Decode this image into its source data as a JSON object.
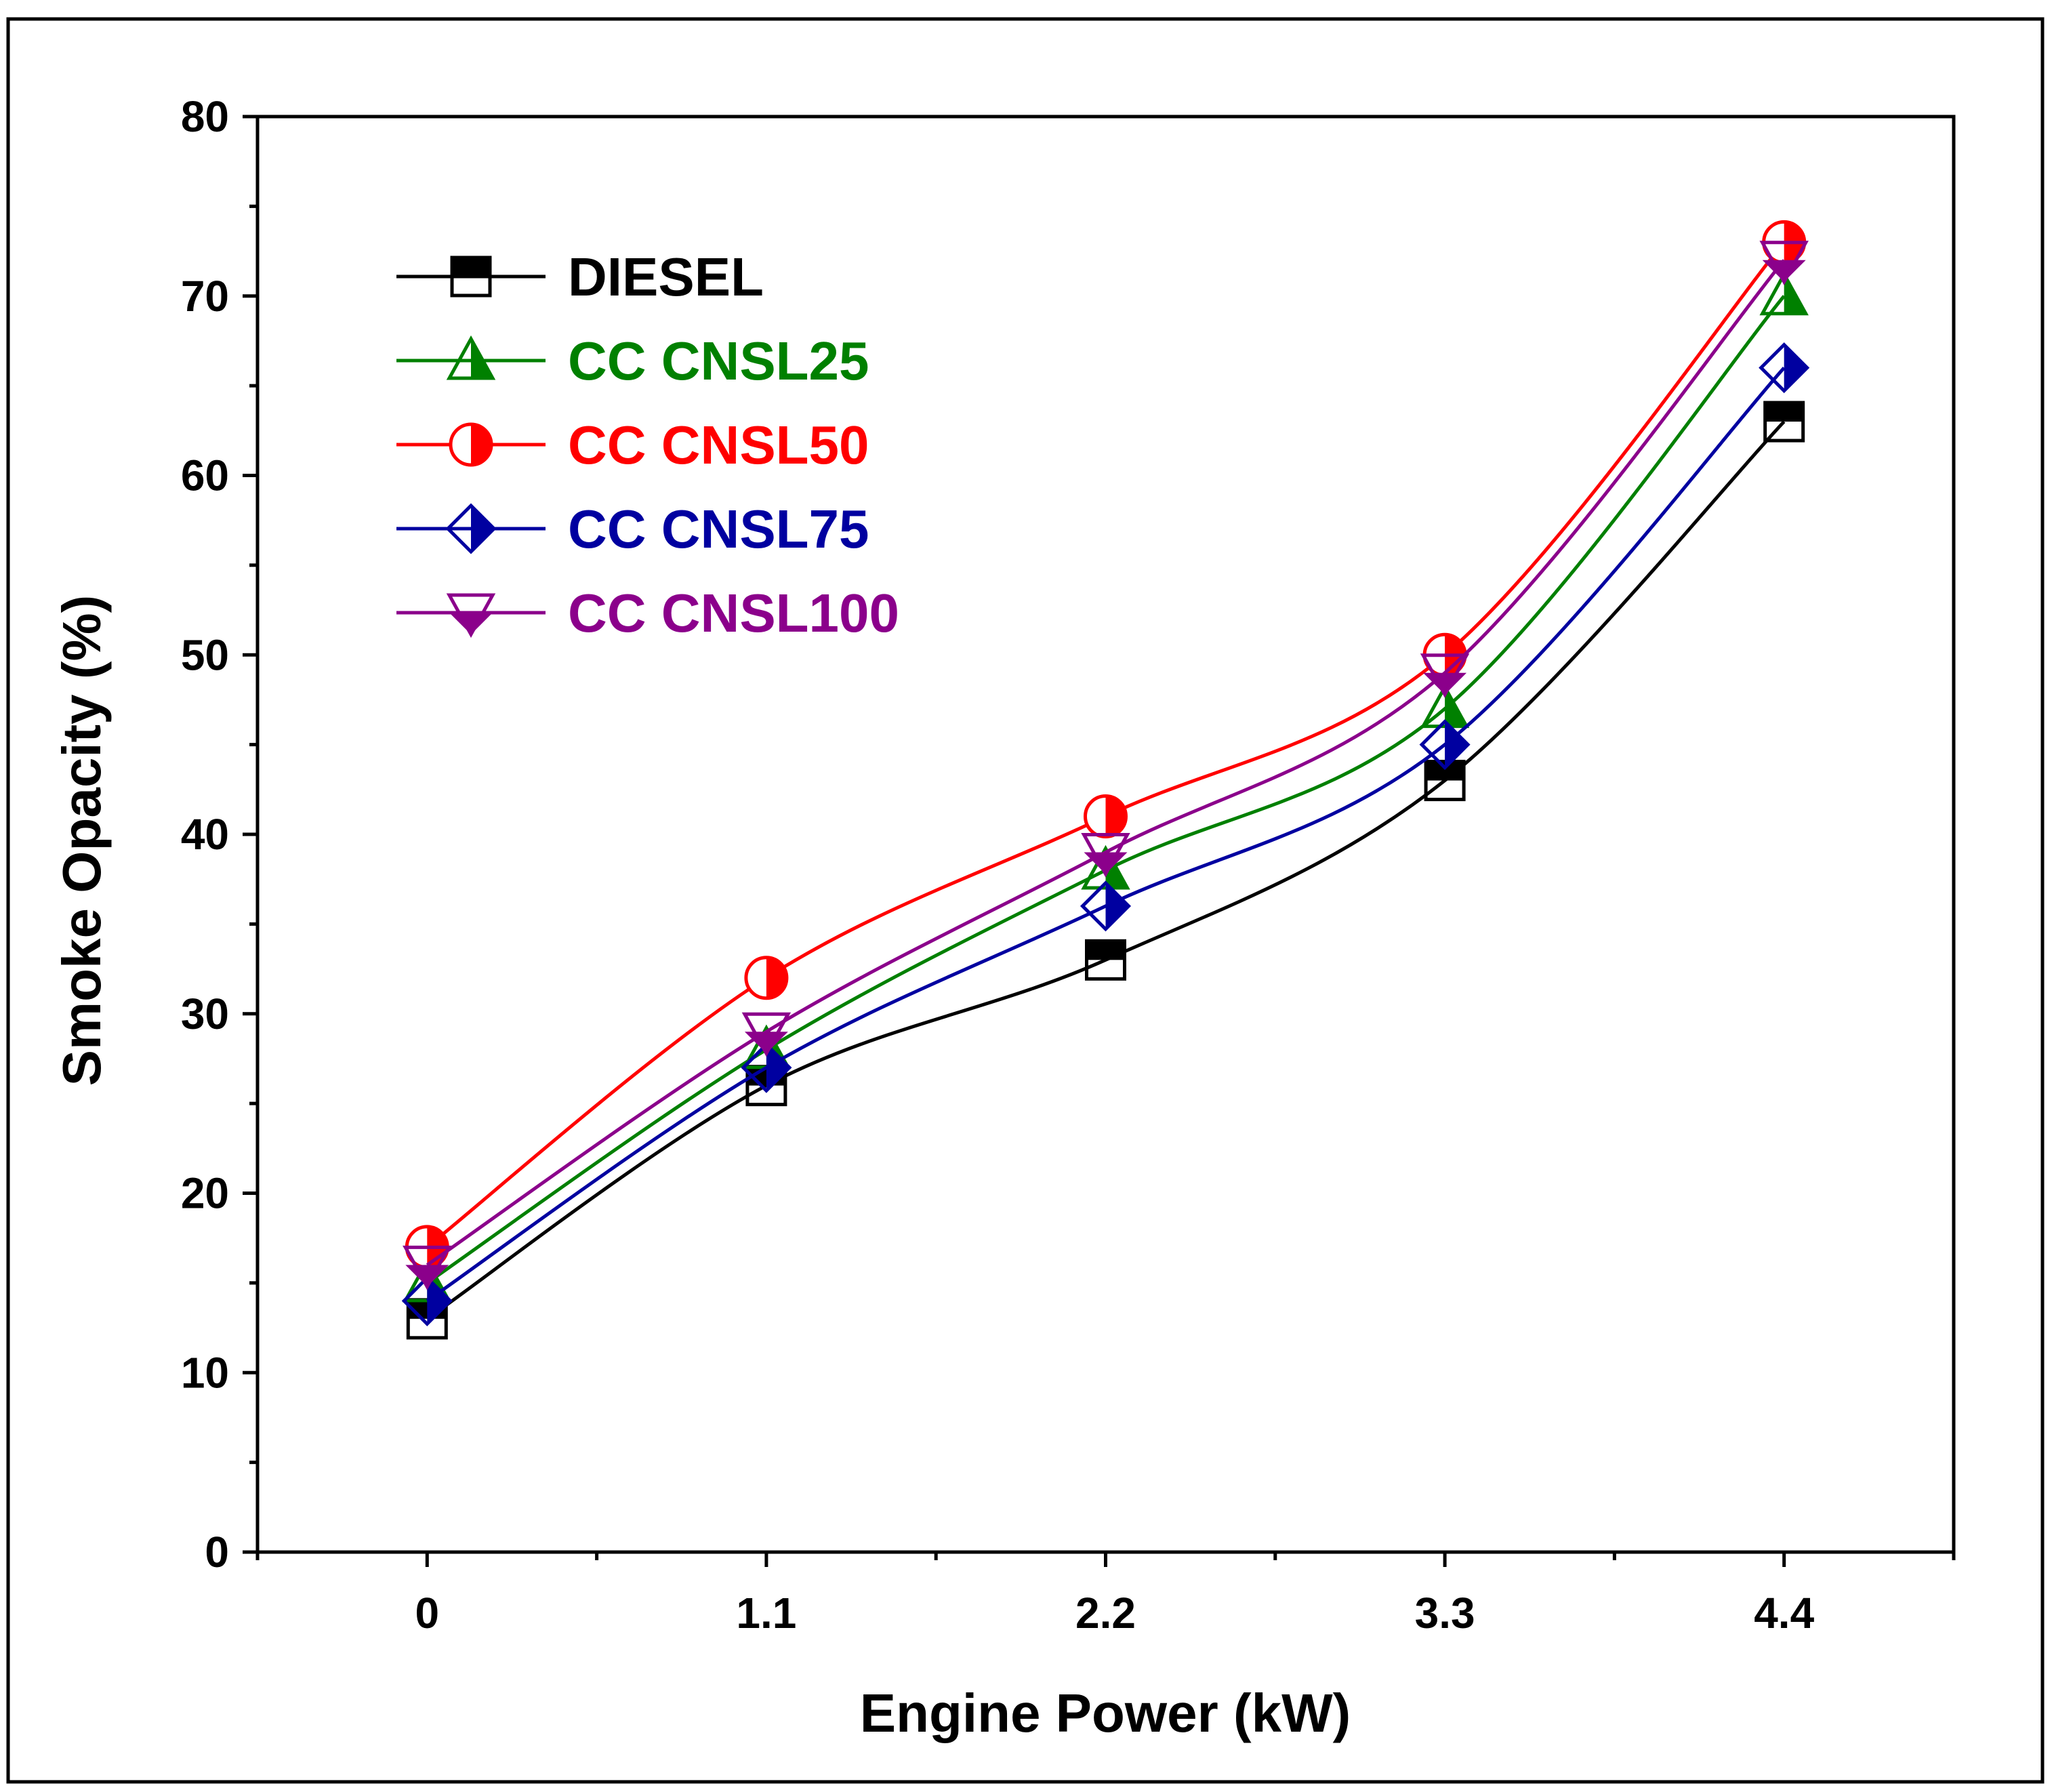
{
  "chart_data": {
    "type": "line",
    "title": "",
    "xlabel": "Engine Power (kW)",
    "ylabel": "Smoke Opacity (%)",
    "x": [
      0,
      1.1,
      2.2,
      3.3,
      4.4
    ],
    "x_tick_labels": [
      "0",
      "1.1",
      "2.2",
      "3.3",
      "4.4"
    ],
    "xlim": [
      -0.55,
      4.95
    ],
    "ylim": [
      0,
      80
    ],
    "y_ticks": [
      0,
      10,
      20,
      30,
      40,
      50,
      60,
      70,
      80
    ],
    "y_tick_labels": [
      "0",
      "10",
      "20",
      "30",
      "40",
      "50",
      "60",
      "70",
      "80"
    ],
    "grid": false,
    "legend_position": "top-left",
    "series": [
      {
        "name": "DIESEL",
        "values": [
          13,
          26,
          33,
          43,
          63
        ],
        "color": "#000000",
        "marker": "square"
      },
      {
        "name": "CC CNSL25",
        "values": [
          15,
          28,
          38,
          47,
          70
        ],
        "color": "#008000",
        "marker": "triangle-up"
      },
      {
        "name": "CC CNSL50",
        "values": [
          17,
          32,
          41,
          50,
          73
        ],
        "color": "#ff0000",
        "marker": "circle"
      },
      {
        "name": "CC CNSL75",
        "values": [
          14,
          27,
          36,
          45,
          66
        ],
        "color": "#0000a0",
        "marker": "diamond"
      },
      {
        "name": "CC CNSL100",
        "values": [
          16,
          29,
          39,
          49,
          72
        ],
        "color": "#8b008b",
        "marker": "triangle-down"
      }
    ]
  }
}
